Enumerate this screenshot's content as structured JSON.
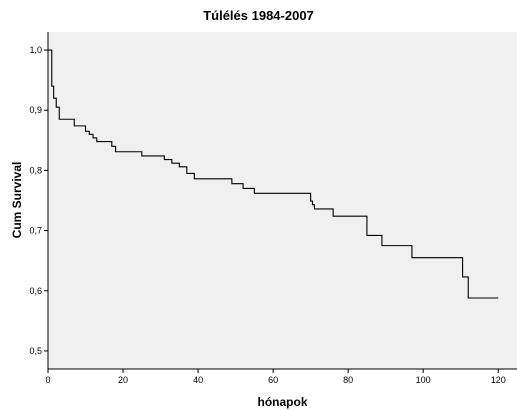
{
  "chart_data": {
    "type": "line",
    "subtype": "step",
    "title": "Túlélés 1984-2007",
    "xlabel": "hónapok",
    "ylabel": "Cum Survival",
    "xlim": [
      0,
      125
    ],
    "ylim": [
      0.47,
      1.03
    ],
    "xticks": [
      0,
      20,
      40,
      60,
      80,
      100,
      120
    ],
    "xtick_labels": [
      "0",
      "20",
      "40",
      "60",
      "80",
      "100",
      "120"
    ],
    "yticks": [
      0.5,
      0.6,
      0.7,
      0.8,
      0.9,
      1.0
    ],
    "ytick_labels": [
      "0,5",
      "0,6",
      "0,7",
      "0,8",
      "0,9",
      "1,0"
    ],
    "grid": false,
    "background": "#f0f0f0",
    "line_color": "#000000",
    "series": [
      {
        "x": [
          0,
          1,
          1.5,
          2.2,
          3,
          7,
          10,
          11,
          12,
          13,
          17,
          18,
          25,
          31,
          33,
          35,
          37,
          39,
          49,
          52,
          55,
          70,
          70.5,
          71,
          76,
          85,
          89,
          97,
          110.5,
          112,
          120
        ],
        "y": [
          1.0,
          0.94,
          0.92,
          0.905,
          0.885,
          0.874,
          0.865,
          0.86,
          0.854,
          0.848,
          0.84,
          0.831,
          0.824,
          0.818,
          0.812,
          0.806,
          0.795,
          0.786,
          0.778,
          0.77,
          0.762,
          0.749,
          0.743,
          0.736,
          0.724,
          0.692,
          0.675,
          0.655,
          0.623,
          0.588,
          0.588
        ]
      }
    ]
  }
}
